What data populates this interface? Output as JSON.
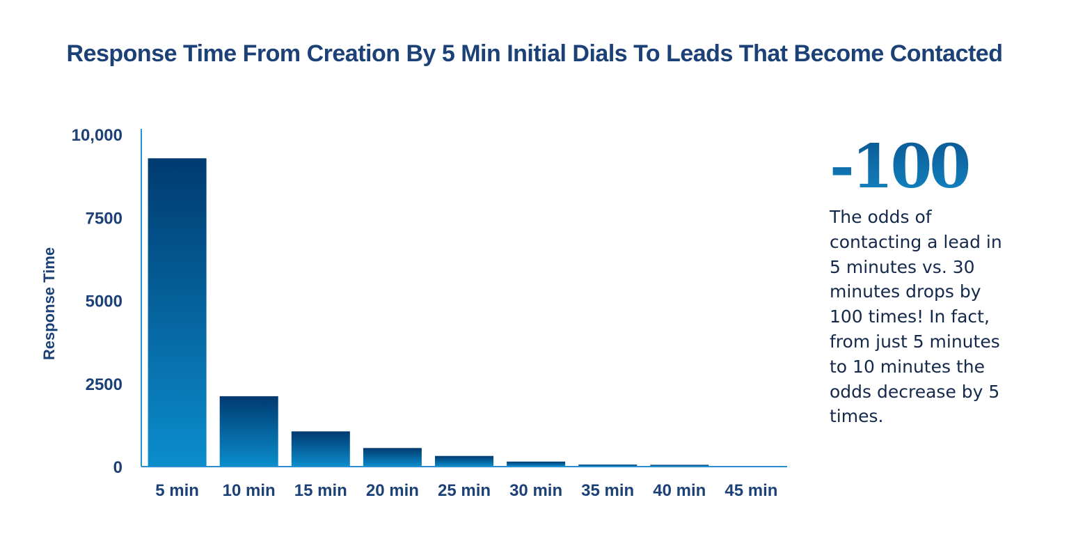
{
  "title": "Response Time From Creation By 5 Min Initial Dials To Leads That Become Contacted",
  "callout": {
    "number": "-100",
    "text": "The odds of contacting a lead in 5 minutes vs. 30 minutes drops by 100 times! In fact, from just 5 minutes to 10 minutes the odds decrease by 5 times."
  },
  "colors": {
    "title": "#1c4177",
    "bar_top": "#003a70",
    "bar_bottom": "#0b8dcc",
    "axis": "#2a8fd0"
  },
  "chart_data": {
    "type": "bar",
    "title": "Response Time From Creation By 5 Min Initial Dials To Leads That Become Contacted",
    "xlabel": "",
    "ylabel": "Response Time",
    "categories": [
      "5 min",
      "10 min",
      "15 min",
      "20 min",
      "25 min",
      "30 min",
      "35 min",
      "40 min",
      "45 min"
    ],
    "values": [
      9280,
      2120,
      1060,
      560,
      320,
      150,
      60,
      55,
      0
    ],
    "ylim": [
      0,
      10000
    ],
    "yticks": [
      0,
      2500,
      5000,
      7500,
      10000
    ],
    "ytick_labels": [
      "0",
      "2500",
      "5000",
      "7500",
      "10,000"
    ],
    "grid": false,
    "legend": "none"
  }
}
